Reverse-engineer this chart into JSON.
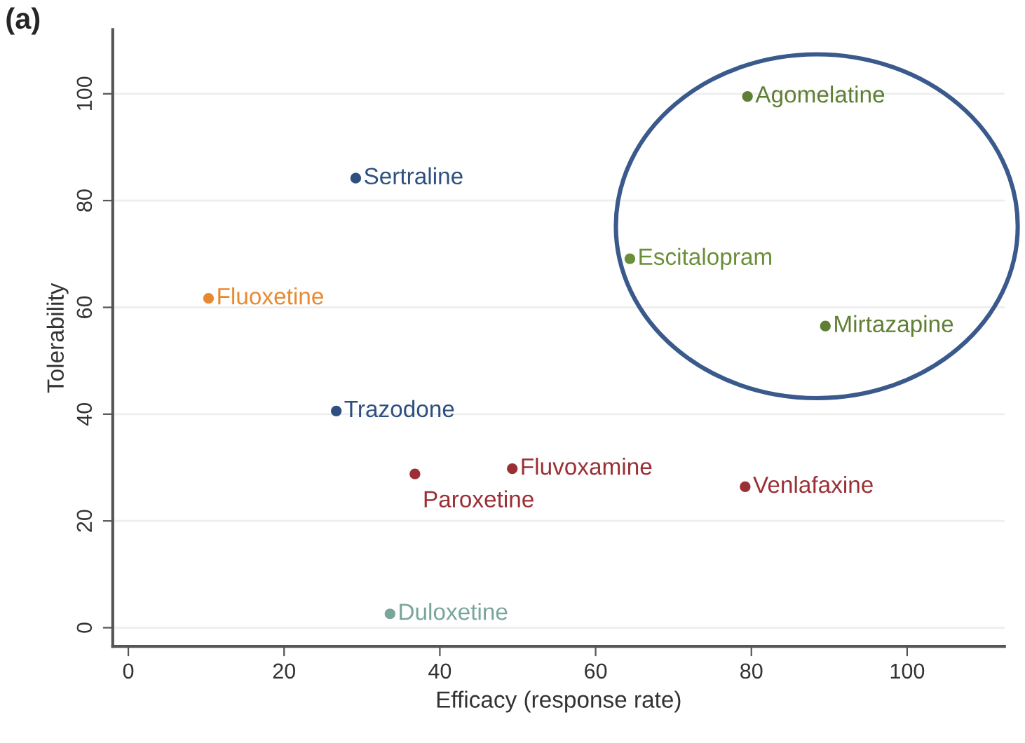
{
  "chart_data": {
    "type": "scatter",
    "title": "(a)",
    "xlabel": "Efficacy (response rate)",
    "ylabel": "Tolerability",
    "xlim": [
      -2,
      112.5
    ],
    "ylim": [
      -3.5,
      112
    ],
    "xticks": [
      0,
      20,
      40,
      60,
      80,
      100
    ],
    "yticks": [
      0,
      20,
      40,
      60,
      80,
      100
    ],
    "grid": "y",
    "marker": "circle",
    "series": [
      {
        "name": "Agomelatine",
        "color": "#5f7f34",
        "x": [
          79.5
        ],
        "values": [
          99.5
        ]
      },
      {
        "name": "Sertraline",
        "color": "#2e4f7f",
        "x": [
          29.2
        ],
        "values": [
          84.2
        ]
      },
      {
        "name": "Escitalopram",
        "color": "#6b8e3a",
        "x": [
          64.4
        ],
        "values": [
          69.1
        ]
      },
      {
        "name": "Fluoxetine",
        "color": "#e8892f",
        "x": [
          10.3
        ],
        "values": [
          61.7
        ]
      },
      {
        "name": "Mirtazapine",
        "color": "#5f7f34",
        "x": [
          89.5
        ],
        "values": [
          56.5
        ]
      },
      {
        "name": "Trazodone",
        "color": "#2e4f7f",
        "x": [
          26.7
        ],
        "values": [
          40.6
        ]
      },
      {
        "name": "Fluvoxamine",
        "color": "#9b2f36",
        "x": [
          49.3
        ],
        "values": [
          29.8
        ]
      },
      {
        "name": "Paroxetine",
        "color": "#9b2f36",
        "x": [
          36.8
        ],
        "values": [
          28.8
        ]
      },
      {
        "name": "Venlafaxine",
        "color": "#9b2f36",
        "x": [
          79.2
        ],
        "values": [
          26.4
        ]
      },
      {
        "name": "Duloxetine",
        "color": "#7aa59a",
        "x": [
          33.6
        ],
        "values": [
          2.6
        ]
      }
    ]
  }
}
